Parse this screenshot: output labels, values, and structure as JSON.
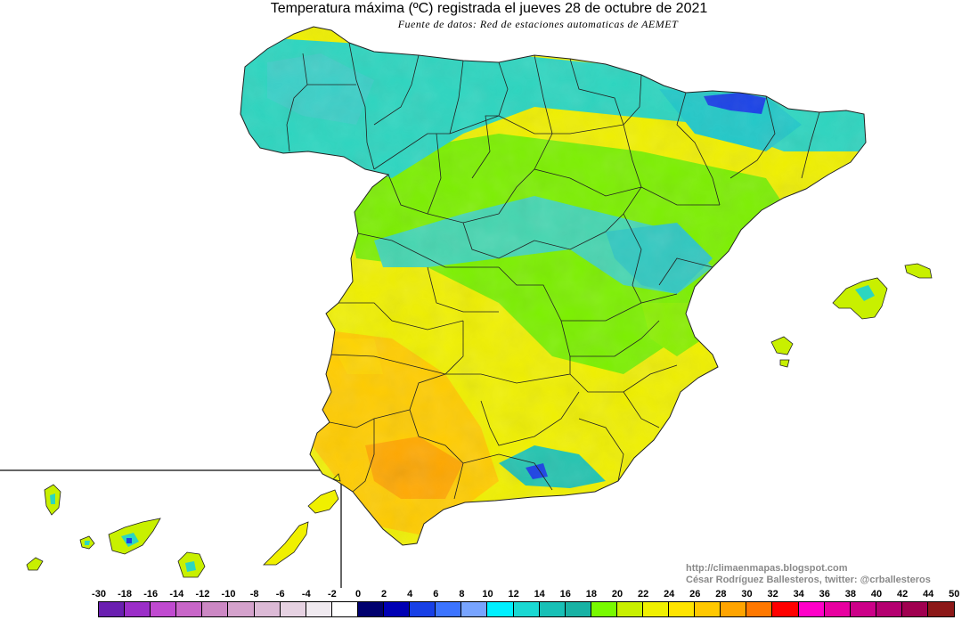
{
  "header": {
    "title": "Temperatura máxima (ºC) registrada el jueves 28 de octubre de 2021",
    "subtitle": "Fuente de datos: Red de estaciones automaticas de AEMET"
  },
  "credits": {
    "blog": "http://climaenmapas.blogspot.com",
    "author": "César Rodríguez Ballesteros, twitter: @crballesteros"
  },
  "legend": {
    "ticks": [
      "-30",
      "-18",
      "-16",
      "-14",
      "-12",
      "-10",
      "-8",
      "-6",
      "-4",
      "-2",
      "0",
      "2",
      "4",
      "6",
      "8",
      "10",
      "12",
      "14",
      "16",
      "18",
      "20",
      "22",
      "24",
      "26",
      "28",
      "30",
      "32",
      "34",
      "36",
      "38",
      "40",
      "42",
      "44",
      "50"
    ],
    "colors": [
      "#6a1fb0",
      "#9b2ec8",
      "#c04ad0",
      "#c866c8",
      "#cc88c4",
      "#d4a2cc",
      "#dcbad6",
      "#e6d2e2",
      "#f0eaf0",
      "#ffffff",
      "#00006e",
      "#0000b4",
      "#1840e6",
      "#3c74ff",
      "#78a4ff",
      "#00f0ff",
      "#1ad8d2",
      "#18c0b6",
      "#18b2a4",
      "#78fa00",
      "#c8f000",
      "#f0f000",
      "#ffe400",
      "#ffc800",
      "#ffa400",
      "#ff7800",
      "#ff0000",
      "#ff00c8",
      "#e800a0",
      "#cc0088",
      "#b40070",
      "#a00050",
      "#8c1818"
    ]
  },
  "map_regions": {
    "peninsula_north": "cool-coast",
    "inset": "Canarias"
  }
}
